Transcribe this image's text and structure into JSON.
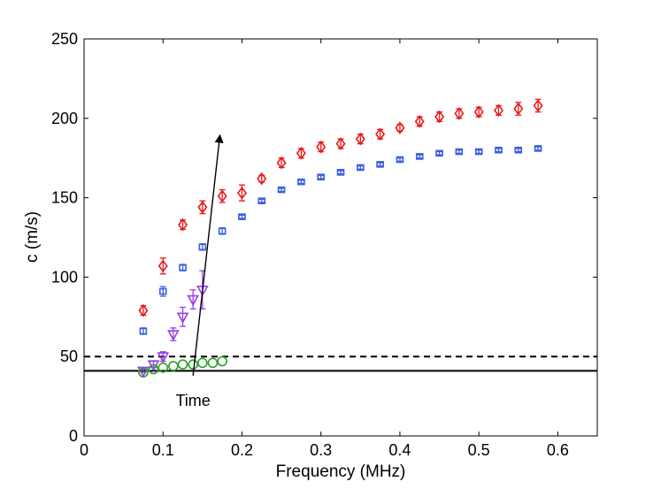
{
  "chart_data": {
    "type": "scatter",
    "title": "",
    "xlabel": "Frequency (MHz)",
    "ylabel": "c (m/s)",
    "xlim": [
      0,
      0.65
    ],
    "ylim": [
      0,
      250
    ],
    "xticks": [
      0,
      0.1,
      0.2,
      0.3,
      0.4,
      0.5,
      0.6
    ],
    "xtick_labels": [
      "0",
      "0.1",
      "0.2",
      "0.3",
      "0.4",
      "0.5",
      "0.6"
    ],
    "yticks": [
      0,
      50,
      100,
      150,
      200,
      250
    ],
    "ytick_labels": [
      "0",
      "50",
      "100",
      "150",
      "200",
      "250"
    ],
    "grid": false,
    "legend": "none",
    "series": [
      {
        "marker": "diamond",
        "color": "#e8191b",
        "x": [
          0.075,
          0.1,
          0.125,
          0.15,
          0.175,
          0.2,
          0.225,
          0.25,
          0.275,
          0.3,
          0.325,
          0.35,
          0.375,
          0.4,
          0.425,
          0.45,
          0.475,
          0.5,
          0.525,
          0.55,
          0.575
        ],
        "y": [
          79,
          107,
          133,
          144,
          151,
          153,
          162,
          172,
          178,
          182,
          184,
          187,
          190,
          194,
          198,
          201,
          203,
          204,
          205,
          206,
          208
        ],
        "err": [
          3,
          5,
          3,
          4,
          4,
          5,
          2,
          3,
          3,
          3,
          3,
          3,
          3,
          2,
          3,
          3,
          3,
          3,
          3,
          4,
          4
        ]
      },
      {
        "marker": "square",
        "color": "#3a5fe0",
        "x": [
          0.075,
          0.1,
          0.125,
          0.15,
          0.175,
          0.2,
          0.225,
          0.25,
          0.275,
          0.3,
          0.325,
          0.35,
          0.375,
          0.4,
          0.425,
          0.45,
          0.475,
          0.5,
          0.525,
          0.55,
          0.575
        ],
        "y": [
          66,
          91,
          106,
          119,
          129,
          138,
          148,
          155,
          160,
          163,
          166,
          169,
          171,
          174,
          176,
          178,
          179,
          179,
          180,
          180,
          181
        ],
        "err": [
          2,
          3,
          2,
          2,
          2,
          1,
          1,
          1,
          1,
          1,
          1,
          1,
          1,
          1,
          1,
          1,
          1,
          1,
          1,
          1,
          1
        ]
      },
      {
        "marker": "triangle-down",
        "color": "#9a3fe6",
        "x": [
          0.075,
          0.088,
          0.1,
          0.113,
          0.125,
          0.138,
          0.15
        ],
        "y": [
          41,
          45,
          50,
          64,
          75,
          86,
          92
        ],
        "err": [
          1,
          2,
          3,
          4,
          6,
          6,
          12
        ]
      },
      {
        "marker": "circle",
        "color": "#2ca02c",
        "x": [
          0.075,
          0.088,
          0.1,
          0.113,
          0.125,
          0.138,
          0.15,
          0.163,
          0.175
        ],
        "y": [
          40,
          42,
          43,
          44,
          45,
          45,
          46,
          46,
          47
        ],
        "err": [
          0,
          0,
          0,
          0,
          0,
          0,
          0,
          0,
          0
        ]
      }
    ],
    "reference_lines": [
      {
        "y": 50,
        "style": "dashed",
        "color": "#000000"
      },
      {
        "y": 41,
        "style": "solid",
        "color": "#000000"
      }
    ],
    "annotations": [
      {
        "text": "Time",
        "arrow_from": [
          0.138,
          38
        ],
        "arrow_to": [
          0.172,
          189
        ]
      }
    ]
  }
}
